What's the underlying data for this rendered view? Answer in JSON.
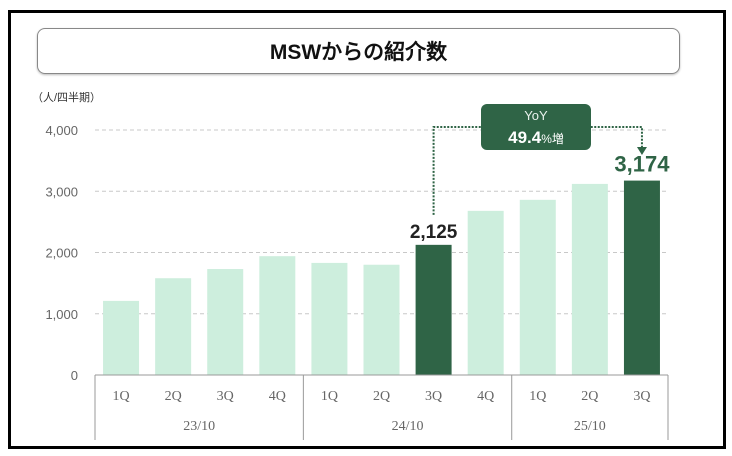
{
  "chart_data": {
    "type": "bar",
    "title": "MSWからの紹介数",
    "ylabel": "（人/四半期）",
    "ylim": [
      0,
      4000
    ],
    "yticks": [
      "0",
      "1,000",
      "2,000",
      "3,000",
      "4,000"
    ],
    "ytick_values": [
      0,
      1000,
      2000,
      3000,
      4000
    ],
    "grid": true,
    "categories": [
      "1Q",
      "2Q",
      "3Q",
      "4Q",
      "1Q",
      "2Q",
      "3Q",
      "4Q",
      "1Q",
      "2Q",
      "3Q"
    ],
    "groups": [
      {
        "label": "23/10",
        "count": 4
      },
      {
        "label": "24/10",
        "count": 4
      },
      {
        "label": "25/10",
        "count": 3
      }
    ],
    "values": [
      1210,
      1580,
      1730,
      1940,
      1830,
      1800,
      2125,
      2680,
      2860,
      3120,
      3174
    ],
    "highlighted": [
      6,
      10
    ],
    "data_labels": {
      "6": "2,125",
      "10": "3,174"
    },
    "annotation": {
      "line1": "YoY",
      "value": "49.4",
      "suffix": "%増"
    },
    "colors": {
      "light": "#cdeedd",
      "dark": "#2f6446",
      "label_dark": "#2f6446"
    }
  }
}
